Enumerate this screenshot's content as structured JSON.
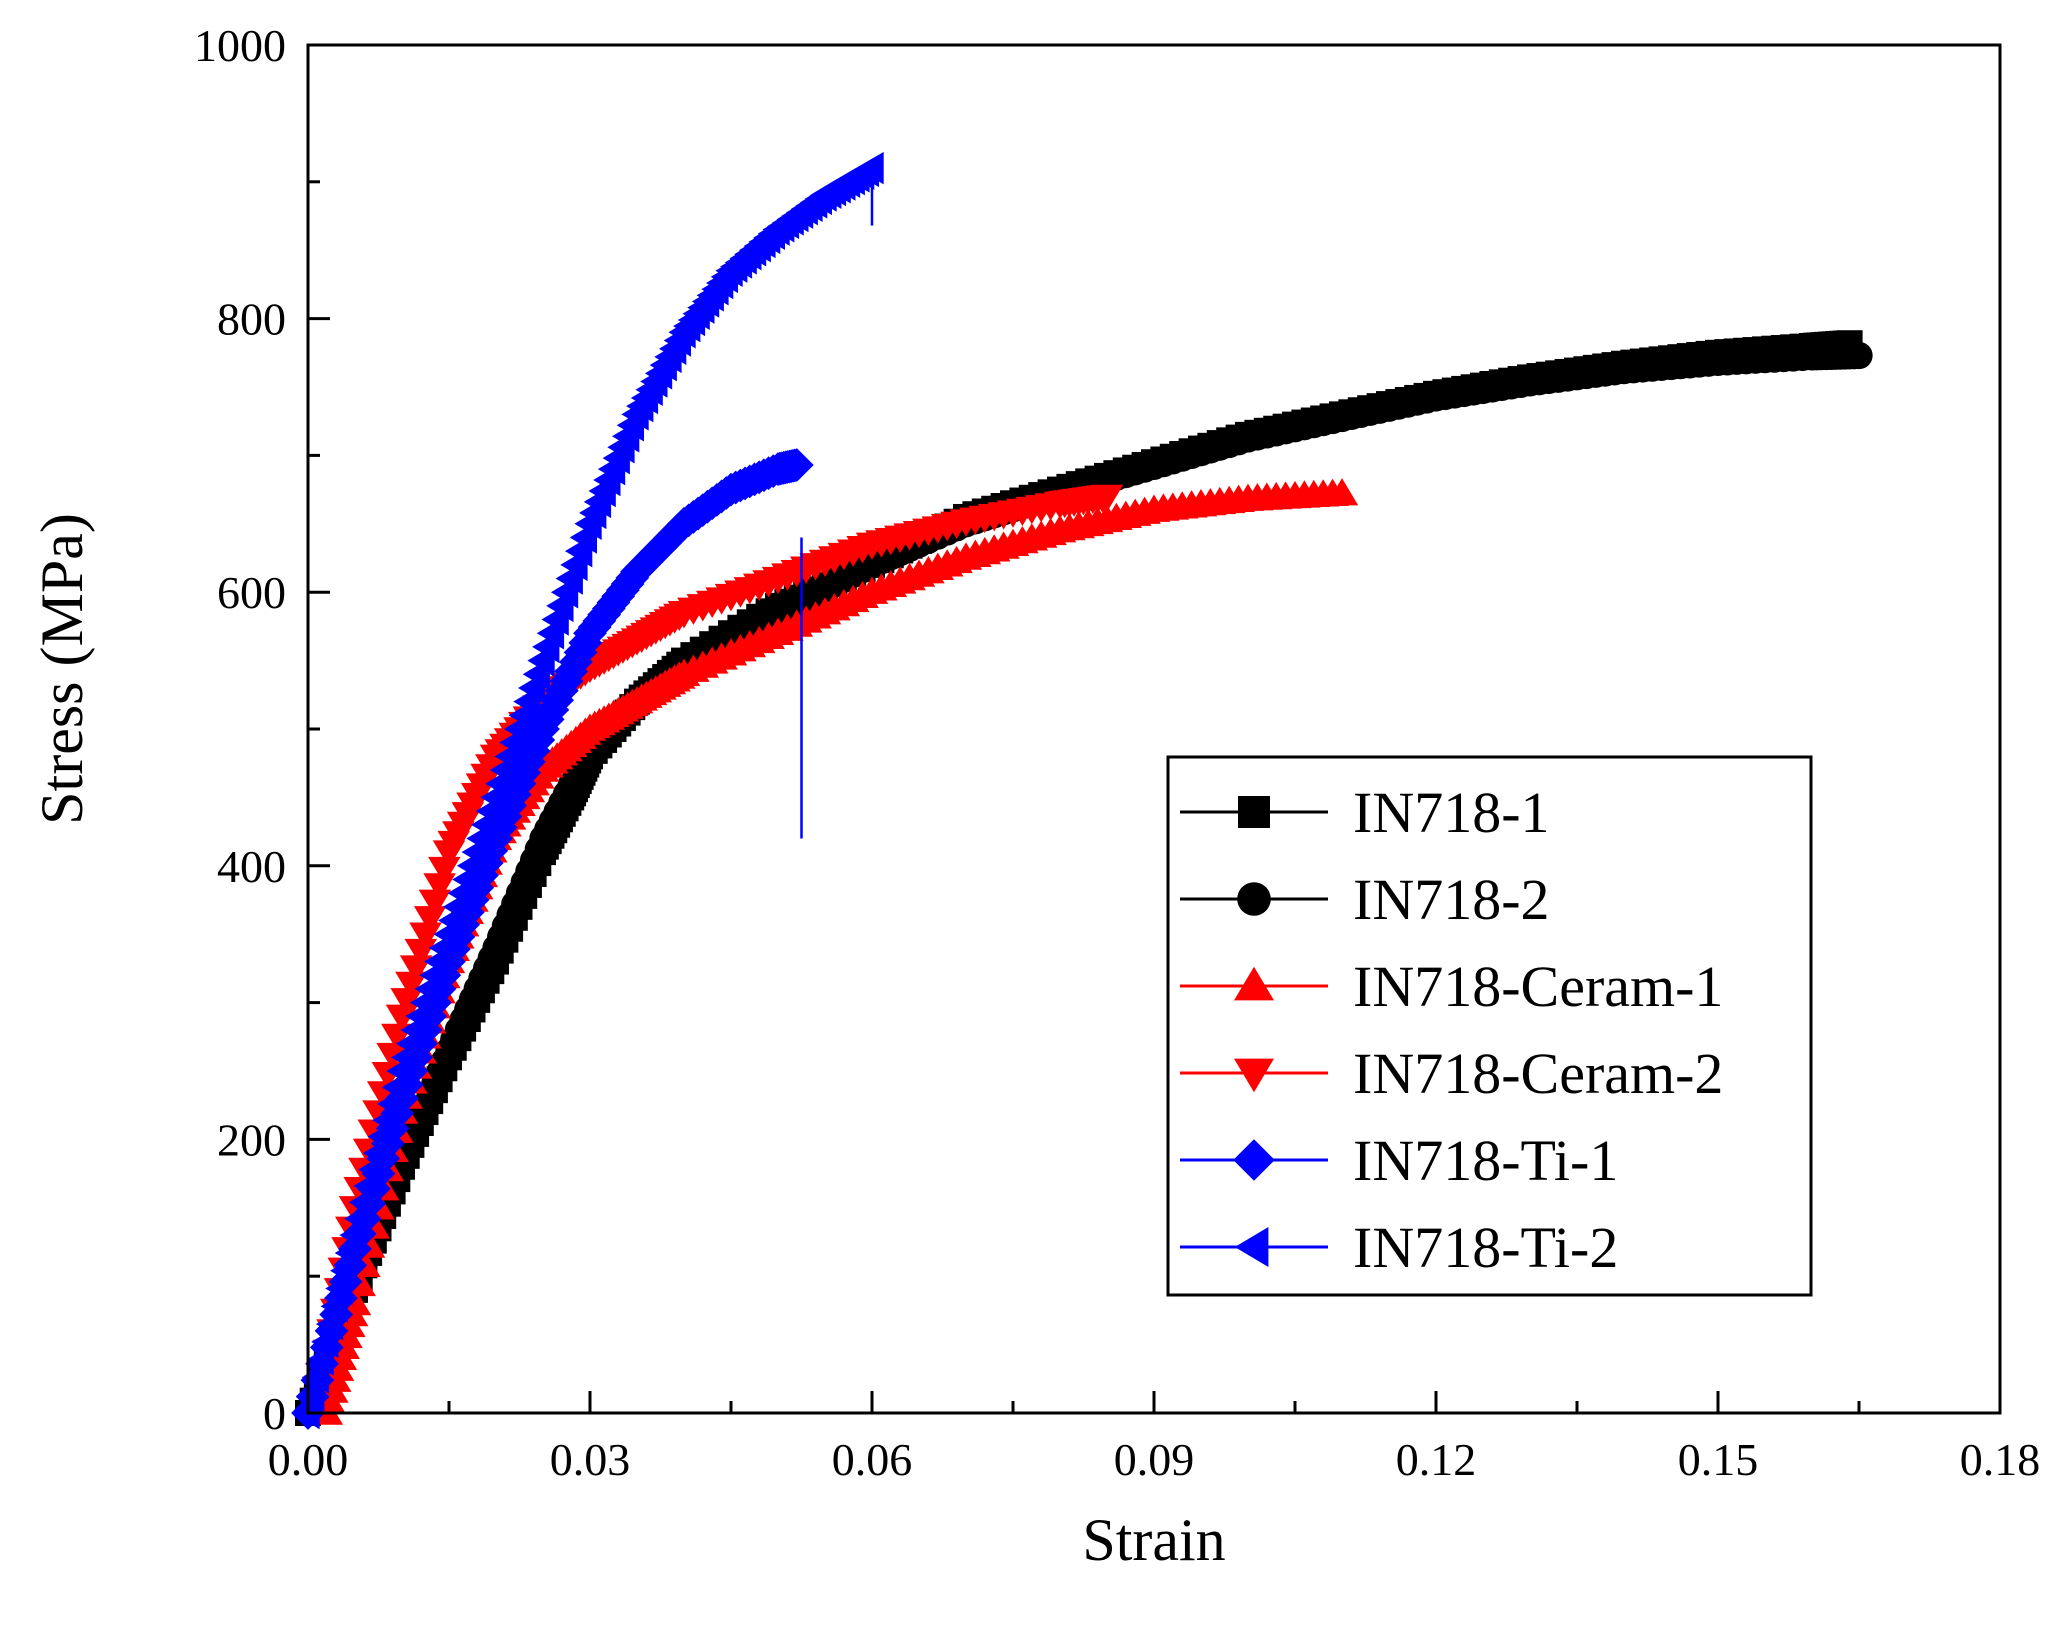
{
  "chart_data": {
    "type": "line",
    "title": "",
    "xlabel": "Strain",
    "ylabel": "Stress (MPa)",
    "xlim": [
      0.0,
      0.18
    ],
    "ylim": [
      0,
      1000
    ],
    "xticks": [
      "0.00",
      "0.03",
      "0.06",
      "0.09",
      "0.12",
      "0.15",
      "0.18"
    ],
    "yticks": [
      "0",
      "200",
      "400",
      "600",
      "800",
      "1000"
    ],
    "legend_position": "bottom-right",
    "series": [
      {
        "name": "IN718-1",
        "color": "#000000",
        "marker": "square",
        "x": [
          0.0,
          0.005,
          0.01,
          0.015,
          0.02,
          0.025,
          0.028,
          0.03,
          0.035,
          0.04,
          0.05,
          0.06,
          0.07,
          0.08,
          0.09,
          0.1,
          0.11,
          0.12,
          0.13,
          0.14,
          0.15,
          0.16,
          0.164
        ],
        "y": [
          0,
          90,
          180,
          260,
          330,
          410,
          450,
          480,
          520,
          550,
          590,
          620,
          655,
          675,
          695,
          715,
          730,
          745,
          757,
          767,
          775,
          780,
          782
        ]
      },
      {
        "name": "IN718-2",
        "color": "#000000",
        "marker": "circle",
        "x": [
          0.0,
          0.005,
          0.01,
          0.015,
          0.02,
          0.025,
          0.03,
          0.035,
          0.04,
          0.05,
          0.06,
          0.07,
          0.08,
          0.09,
          0.1,
          0.11,
          0.12,
          0.13,
          0.14,
          0.15,
          0.16,
          0.165
        ],
        "y": [
          0,
          95,
          185,
          265,
          340,
          420,
          485,
          520,
          550,
          585,
          620,
          650,
          672,
          692,
          712,
          727,
          742,
          753,
          762,
          768,
          772,
          773
        ]
      },
      {
        "name": "IN718-Ceram-1",
        "color": "#ff0000",
        "marker": "triangle-up",
        "x": [
          0.002,
          0.005,
          0.01,
          0.015,
          0.02,
          0.025,
          0.03,
          0.035,
          0.04,
          0.05,
          0.06,
          0.07,
          0.08,
          0.09,
          0.1,
          0.11
        ],
        "y": [
          0,
          80,
          220,
          330,
          420,
          470,
          500,
          520,
          540,
          570,
          600,
          625,
          645,
          660,
          668,
          672
        ]
      },
      {
        "name": "IN718-Ceram-2",
        "color": "#ff0000",
        "marker": "triangle-down",
        "x": [
          0.001,
          0.005,
          0.01,
          0.015,
          0.02,
          0.025,
          0.03,
          0.035,
          0.04,
          0.05,
          0.06,
          0.07,
          0.08,
          0.085
        ],
        "y": [
          0,
          150,
          290,
          410,
          480,
          520,
          545,
          565,
          585,
          610,
          635,
          652,
          665,
          670
        ]
      },
      {
        "name": "IN718-Ti-1",
        "color": "#0000ff",
        "marker": "diamond",
        "x": [
          0.0,
          0.005,
          0.01,
          0.015,
          0.02,
          0.025,
          0.03,
          0.035,
          0.04,
          0.045,
          0.05,
          0.052
        ],
        "y": [
          0,
          120,
          230,
          330,
          420,
          500,
          570,
          615,
          650,
          675,
          690,
          693
        ]
      },
      {
        "name": "IN718-Ti-2",
        "color": "#0000ff",
        "marker": "triangle-left",
        "x": [
          0.0,
          0.005,
          0.01,
          0.015,
          0.02,
          0.025,
          0.03,
          0.035,
          0.04,
          0.045,
          0.05,
          0.055,
          0.06
        ],
        "y": [
          0,
          130,
          250,
          350,
          450,
          550,
          650,
          730,
          790,
          835,
          865,
          890,
          910
        ]
      }
    ],
    "annotations": [
      {
        "type": "vline",
        "color": "#0000ff",
        "x": 0.0525,
        "y_range": [
          420,
          640
        ]
      },
      {
        "type": "vline",
        "color": "#0000ff",
        "x": 0.06,
        "y_range": [
          868,
          912
        ]
      }
    ]
  }
}
